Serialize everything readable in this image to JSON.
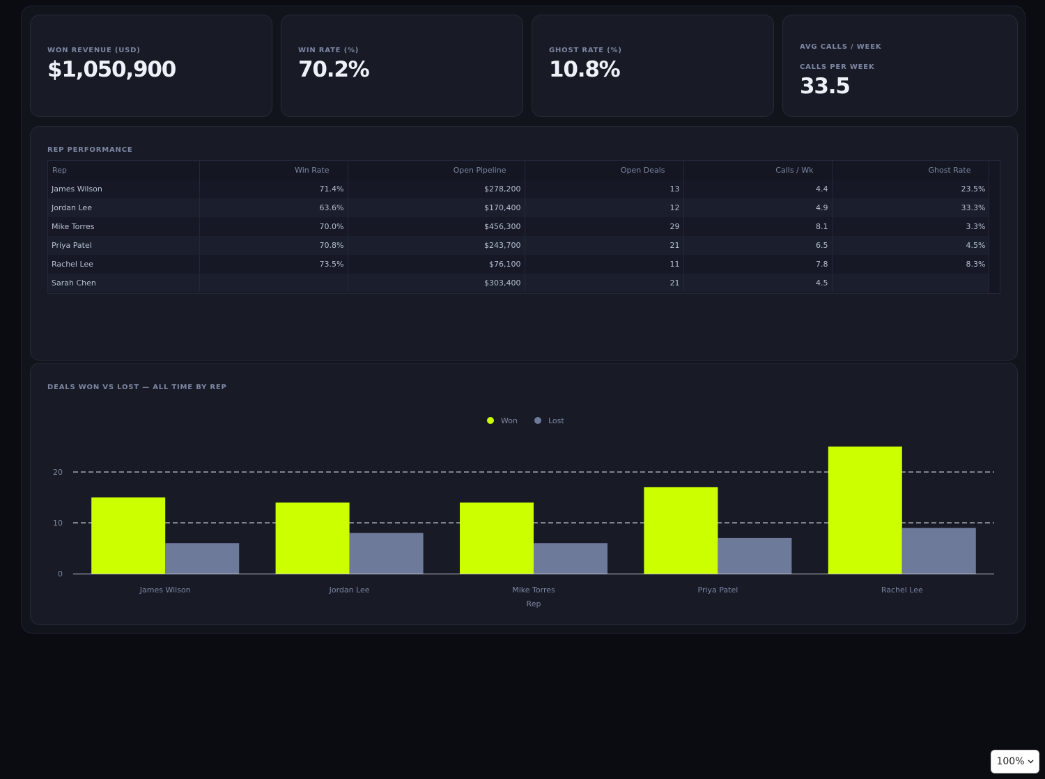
{
  "kpis": [
    {
      "label": "WON REVENUE (USD)",
      "value": "$1,050,900"
    },
    {
      "label": "WIN RATE (%)",
      "value": "70.2%"
    },
    {
      "label": "GHOST RATE (%)",
      "value": "10.8%"
    },
    {
      "label": "AVG CALLS / WEEK",
      "sublabel": "CALLS PER WEEK",
      "value": "33.5"
    }
  ],
  "rep_table": {
    "title": "REP PERFORMANCE",
    "columns": [
      "Rep",
      "Win Rate",
      "Open Pipeline",
      "Open Deals",
      "Calls / Wk",
      "Ghost Rate"
    ],
    "rows": [
      [
        "James Wilson",
        "71.4%",
        "$278,200",
        "13",
        "4.4",
        "23.5%"
      ],
      [
        "Jordan Lee",
        "63.6%",
        "$170,400",
        "12",
        "4.9",
        "33.3%"
      ],
      [
        "Mike Torres",
        "70.0%",
        "$456,300",
        "29",
        "8.1",
        "3.3%"
      ],
      [
        "Priya Patel",
        "70.8%",
        "$243,700",
        "21",
        "6.5",
        "4.5%"
      ],
      [
        "Rachel Lee",
        "73.5%",
        "$76,100",
        "11",
        "7.8",
        "8.3%"
      ],
      [
        "Sarah Chen",
        "",
        "$303,400",
        "21",
        "4.5",
        ""
      ]
    ]
  },
  "chart_section": {
    "title": "DEALS WON VS LOST — ALL TIME BY REP"
  },
  "chart_data": {
    "type": "bar",
    "categories": [
      "James Wilson",
      "Jordan Lee",
      "Mike Torres",
      "Priya Patel",
      "Rachel Lee"
    ],
    "series": [
      {
        "name": "Won",
        "values": [
          15,
          14,
          14,
          17,
          25
        ],
        "color": "#ccff00"
      },
      {
        "name": "Lost",
        "values": [
          6,
          8,
          6,
          7,
          9
        ],
        "color": "#6e7a9a"
      }
    ],
    "title": "DEALS WON VS LOST — ALL TIME BY REP",
    "xlabel": "Rep",
    "ylabel": "",
    "ylim": [
      0,
      25
    ],
    "yticks": [
      0,
      10,
      20
    ],
    "grid": true,
    "legend": "top-center"
  },
  "zoom": {
    "label": "100%",
    "icon": "chevron-down-icon"
  }
}
